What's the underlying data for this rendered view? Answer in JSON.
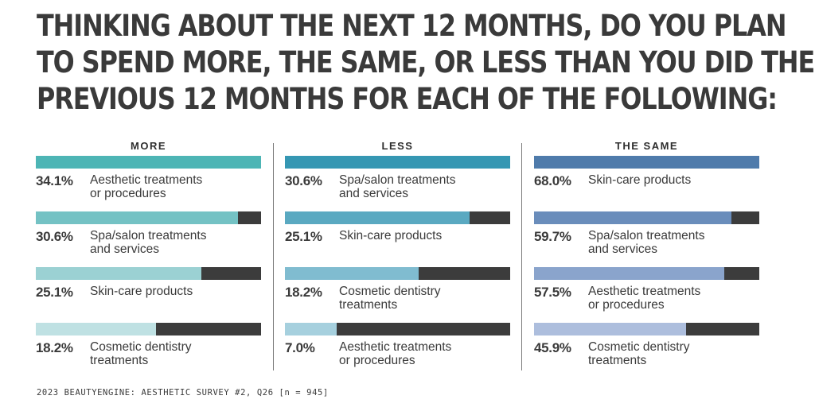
{
  "title_lines": [
    "THINKING ABOUT THE NEXT 12 MONTHS, DO YOU PLAN",
    "TO SPEND MORE, THE SAME, OR LESS THAN YOU DID THE",
    "PREVIOUS 12 MONTHS FOR EACH OF THE FOLLOWING:"
  ],
  "source": "2023 BEAUTYENGINE: AESTHETIC SURVEY #2, Q26 [n = 945]",
  "chart_data": [
    {
      "type": "bar",
      "title": "MORE",
      "categories": [
        "Aesthetic treatments or procedures",
        "Spa/salon treatments and services",
        "Skin-care products",
        "Cosmetic dentistry treatments"
      ],
      "values": [
        34.1,
        30.6,
        25.1,
        18.2
      ],
      "value_labels": [
        "34.1%",
        "30.6%",
        "25.1%",
        "18.2%"
      ],
      "label_lines": [
        [
          "Aesthetic treatments",
          "or procedures"
        ],
        [
          "Spa/salon treatments",
          "and services"
        ],
        [
          "Skin-care products"
        ],
        [
          "Cosmetic dentistry",
          "treatments"
        ]
      ],
      "fill_colors": [
        "#4db5b5",
        "#74c2c4",
        "#9bd1d3",
        "#bfe1e3"
      ],
      "track_color": "#3c3c3c",
      "unit": "%"
    },
    {
      "type": "bar",
      "title": "LESS",
      "categories": [
        "Spa/salon treatments and services",
        "Skin-care products",
        "Cosmetic dentistry treatments",
        "Aesthetic treatments or procedures"
      ],
      "values": [
        30.6,
        25.1,
        18.2,
        7.0
      ],
      "value_labels": [
        "30.6%",
        "25.1%",
        "18.2%",
        "7.0%"
      ],
      "label_lines": [
        [
          "Spa/salon treatments",
          "and services"
        ],
        [
          "Skin-care products"
        ],
        [
          "Cosmetic dentistry",
          "treatments"
        ],
        [
          "Aesthetic treatments",
          "or procedures"
        ]
      ],
      "fill_colors": [
        "#3597b3",
        "#5aa9c1",
        "#80bcd0",
        "#a6d0de"
      ],
      "track_color": "#3c3c3c",
      "unit": "%"
    },
    {
      "type": "bar",
      "title": "THE SAME",
      "categories": [
        "Skin-care products",
        "Spa/salon treatments and services",
        "Aesthetic treatments or procedures",
        "Cosmetic dentistry treatments"
      ],
      "values": [
        68.0,
        59.7,
        57.5,
        45.9
      ],
      "value_labels": [
        "68.0%",
        "59.7%",
        "57.5%",
        "45.9%"
      ],
      "label_lines": [
        [
          "Skin-care products"
        ],
        [
          "Spa/salon treatments",
          "and services"
        ],
        [
          "Aesthetic treatments",
          "or procedures"
        ],
        [
          "Cosmetic dentistry",
          "treatments"
        ]
      ],
      "fill_colors": [
        "#4f7bab",
        "#6a8dbb",
        "#8aa4cc",
        "#adbedd"
      ],
      "track_color": "#3c3c3c",
      "unit": "%"
    }
  ]
}
